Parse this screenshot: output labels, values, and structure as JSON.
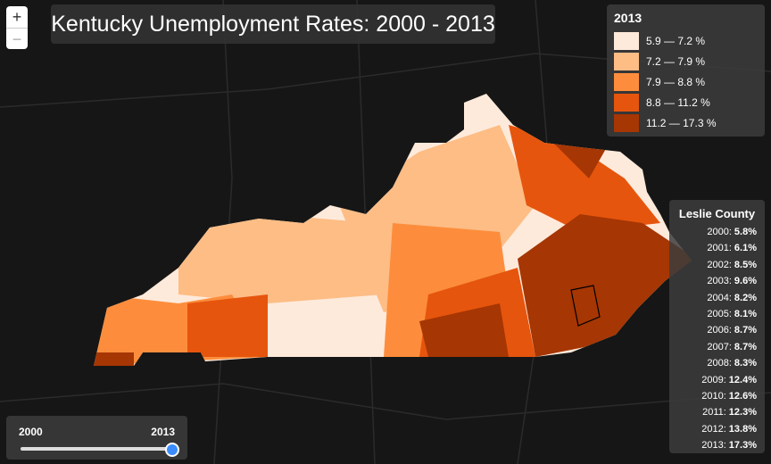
{
  "title": "Kentucky Unemployment Rates: 2000 - 2013",
  "zoom": {
    "in": "+",
    "out": "−"
  },
  "legend": {
    "title": "2013",
    "items": [
      {
        "label": "5.9 — 7.2 %",
        "color": "#feeadb"
      },
      {
        "label": "7.2 — 7.9 %",
        "color": "#fdbd85"
      },
      {
        "label": "7.9 — 8.8 %",
        "color": "#fd8d3c"
      },
      {
        "label": "8.8 — 11.2 %",
        "color": "#e6550d"
      },
      {
        "label": "11.2 — 17.3 %",
        "color": "#a63603"
      }
    ]
  },
  "tooltip": {
    "title": "Leslie County",
    "rows": [
      {
        "year": "2000:",
        "value": "5.8%"
      },
      {
        "year": "2001:",
        "value": "6.1%"
      },
      {
        "year": "2002:",
        "value": "8.5%"
      },
      {
        "year": "2003:",
        "value": "9.6%"
      },
      {
        "year": "2004:",
        "value": "8.2%"
      },
      {
        "year": "2005:",
        "value": "8.1%"
      },
      {
        "year": "2006:",
        "value": "8.7%"
      },
      {
        "year": "2007:",
        "value": "8.7%"
      },
      {
        "year": "2008:",
        "value": "8.3%"
      },
      {
        "year": "2009:",
        "value": "12.4%"
      },
      {
        "year": "2010:",
        "value": "12.6%"
      },
      {
        "year": "2011:",
        "value": "12.3%"
      },
      {
        "year": "2012:",
        "value": "13.8%"
      },
      {
        "year": "2013:",
        "value": "17.3%"
      }
    ]
  },
  "slider": {
    "start": "2000",
    "end": "2013"
  }
}
